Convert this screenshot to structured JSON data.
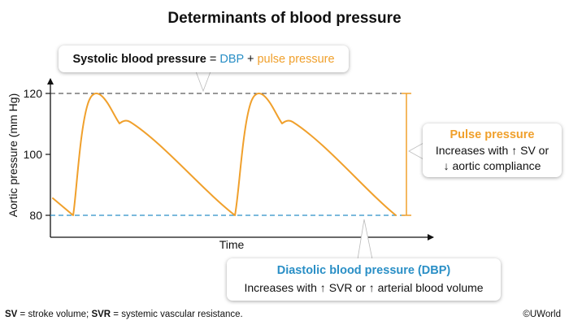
{
  "title": "Determinants of blood pressure",
  "systolic_callout": {
    "label": "Systolic blood pressure",
    "equals": " = ",
    "dbp": "DBP",
    "plus": " + ",
    "pulse": "pulse pressure"
  },
  "pulse_callout": {
    "heading": "Pulse pressure",
    "line1": "Increases with ↑ SV or",
    "line2": "↓ aortic compliance"
  },
  "dbp_callout": {
    "heading": "Diastolic blood pressure (DBP)",
    "line1": "Increases with ↑ SVR or ↑ arterial blood volume"
  },
  "footnote": {
    "sv_abbr": "SV",
    "sv_def": " = stroke volume; ",
    "svr_abbr": "SVR",
    "svr_def": " = systemic vascular resistance."
  },
  "copyright": "©UWorld",
  "chart_data": {
    "type": "line",
    "xlabel": "Time",
    "ylabel": "Aortic pressure (mm Hg)",
    "y_ticks": [
      "120",
      "100",
      "80"
    ],
    "y_tick_values": [
      120,
      100,
      80
    ],
    "ylim": [
      73,
      134
    ],
    "reference_lines": {
      "systolic": 120,
      "diastolic": 80
    },
    "colors": {
      "waveform": "#f0a02c",
      "pulse_bracket": "#f0a02c",
      "diastolic_line": "#2a8fc6",
      "systolic_line": "#333333",
      "accent_orange": "#f0a02c",
      "accent_blue": "#2a8fc6"
    }
  }
}
